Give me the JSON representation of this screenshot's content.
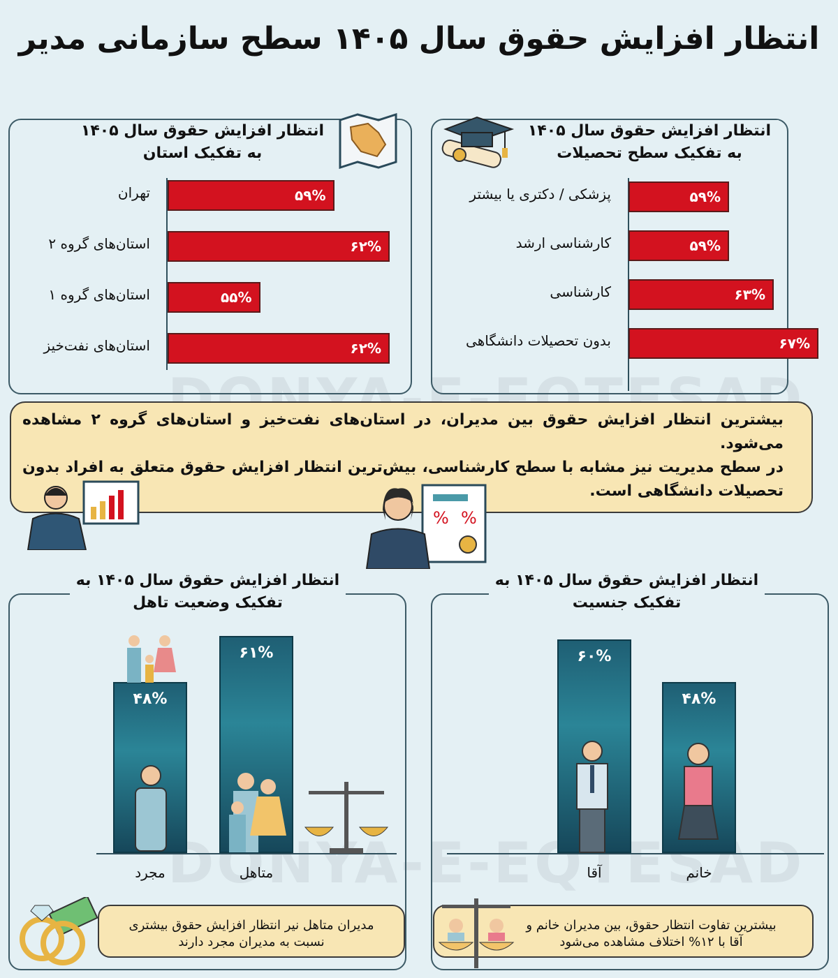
{
  "title": "انتظار افزایش حقوق سال ۱۴۰۵ سطح سازمانی مدیر",
  "watermark": "DONYA-E-EQTESAD",
  "colors": {
    "bar_red": "#d3121f",
    "bar_teal": "#1f5f74",
    "background": "#e4f0f4",
    "callout": "#f8e6b4"
  },
  "chart_data": [
    {
      "type": "bar",
      "orientation": "horizontal",
      "title": "انتظار افزایش حقوق سال ۱۴۰۵ به تفکیک سطح تحصیلات",
      "categories": [
        "پزشکی / دکتری یا بیشتر",
        "کارشناسی ارشد",
        "کارشناسی",
        "بدون تحصیلات دانشگاهی"
      ],
      "values": [
        59,
        59,
        63,
        67
      ],
      "data_labels": [
        "۵۹%",
        "۵۹%",
        "۶۳%",
        "۶۷%"
      ],
      "unit": "%",
      "icon": "graduation-cap-icon"
    },
    {
      "type": "bar",
      "orientation": "horizontal",
      "title": "انتظار افزایش حقوق سال ۱۴۰۵ به تفکیک استان",
      "categories": [
        "تهران",
        "استان‌های گروه ۲",
        "استان‌های گروه ۱",
        "استان‌های نفت‌خیز"
      ],
      "values": [
        59,
        62,
        55,
        62
      ],
      "data_labels": [
        "۵۹%",
        "۶۲%",
        "۵۵%",
        "۶۲%"
      ],
      "unit": "%",
      "icon": "iran-map-icon"
    },
    {
      "type": "bar",
      "orientation": "vertical",
      "title": "انتظار افزایش حقوق سال ۱۴۰۵ به تفکیک وضعیت تاهل",
      "categories": [
        "مجرد",
        "متاهل"
      ],
      "values": [
        48,
        61
      ],
      "data_labels": [
        "۴۸%",
        "۶۱%"
      ],
      "unit": "%"
    },
    {
      "type": "bar",
      "orientation": "vertical",
      "title": "انتظار افزایش حقوق سال ۱۴۰۵ به تفکیک جنسیت",
      "categories": [
        "آقا",
        "خانم"
      ],
      "values": [
        60,
        48
      ],
      "data_labels": [
        "۶۰%",
        "۴۸%"
      ],
      "unit": "%"
    }
  ],
  "callout": {
    "line1": "بیشترین انتظار افزایش حقوق بین مدیران، در استان‌های نفت‌خیز و استان‌های گروه ۲ مشاهده می‌شود.",
    "line2": "در سطح مدیریت نیز مشابه با سطح کارشناسی، بیش‌ترین انتظار افزایش حقوق متعلق به افراد بدون تحصیلات دانشگاهی است."
  },
  "notes": {
    "marital": "مدیران متاهل نیر انتظار افزایش حقوق بیشتری نسبت به مدیران مجرد دارند",
    "gender": "بیشترین تفاوت انتظار حقوق، بین مدیران خانم و آقا با ۱۲% اختلاف مشاهده می‌شود"
  }
}
